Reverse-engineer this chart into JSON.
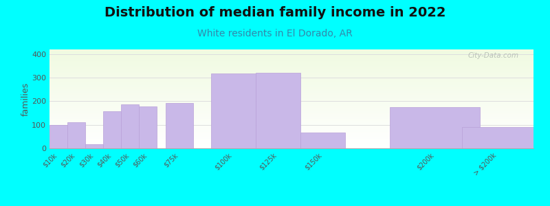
{
  "title": "Distribution of median family income in 2022",
  "subtitle": "White residents in El Dorado, AR",
  "categories": [
    "$10k",
    "$20k",
    "$30k",
    "$40k",
    "$50k",
    "$60k",
    "$75k",
    "$100k",
    "$125k",
    "$150k",
    "$200k",
    "> $200k"
  ],
  "x_positions": [
    10,
    20,
    30,
    40,
    50,
    60,
    75,
    100,
    125,
    150,
    200,
    240
  ],
  "bar_widths": [
    10,
    10,
    10,
    10,
    10,
    10,
    15,
    25,
    25,
    25,
    50,
    40
  ],
  "values": [
    100,
    112,
    18,
    158,
    188,
    178,
    192,
    318,
    320,
    68,
    175,
    90
  ],
  "bar_color": "#c9b8e8",
  "bar_edgecolor": "#b8a0d8",
  "background_color": "#00ffff",
  "title_fontsize": 14,
  "subtitle_fontsize": 10,
  "subtitle_color": "#3388aa",
  "ylabel": "families",
  "ylim": [
    0,
    420
  ],
  "yticks": [
    0,
    100,
    200,
    300,
    400
  ],
  "watermark": "City-Data.com",
  "watermark_color": "#b0b8b0"
}
